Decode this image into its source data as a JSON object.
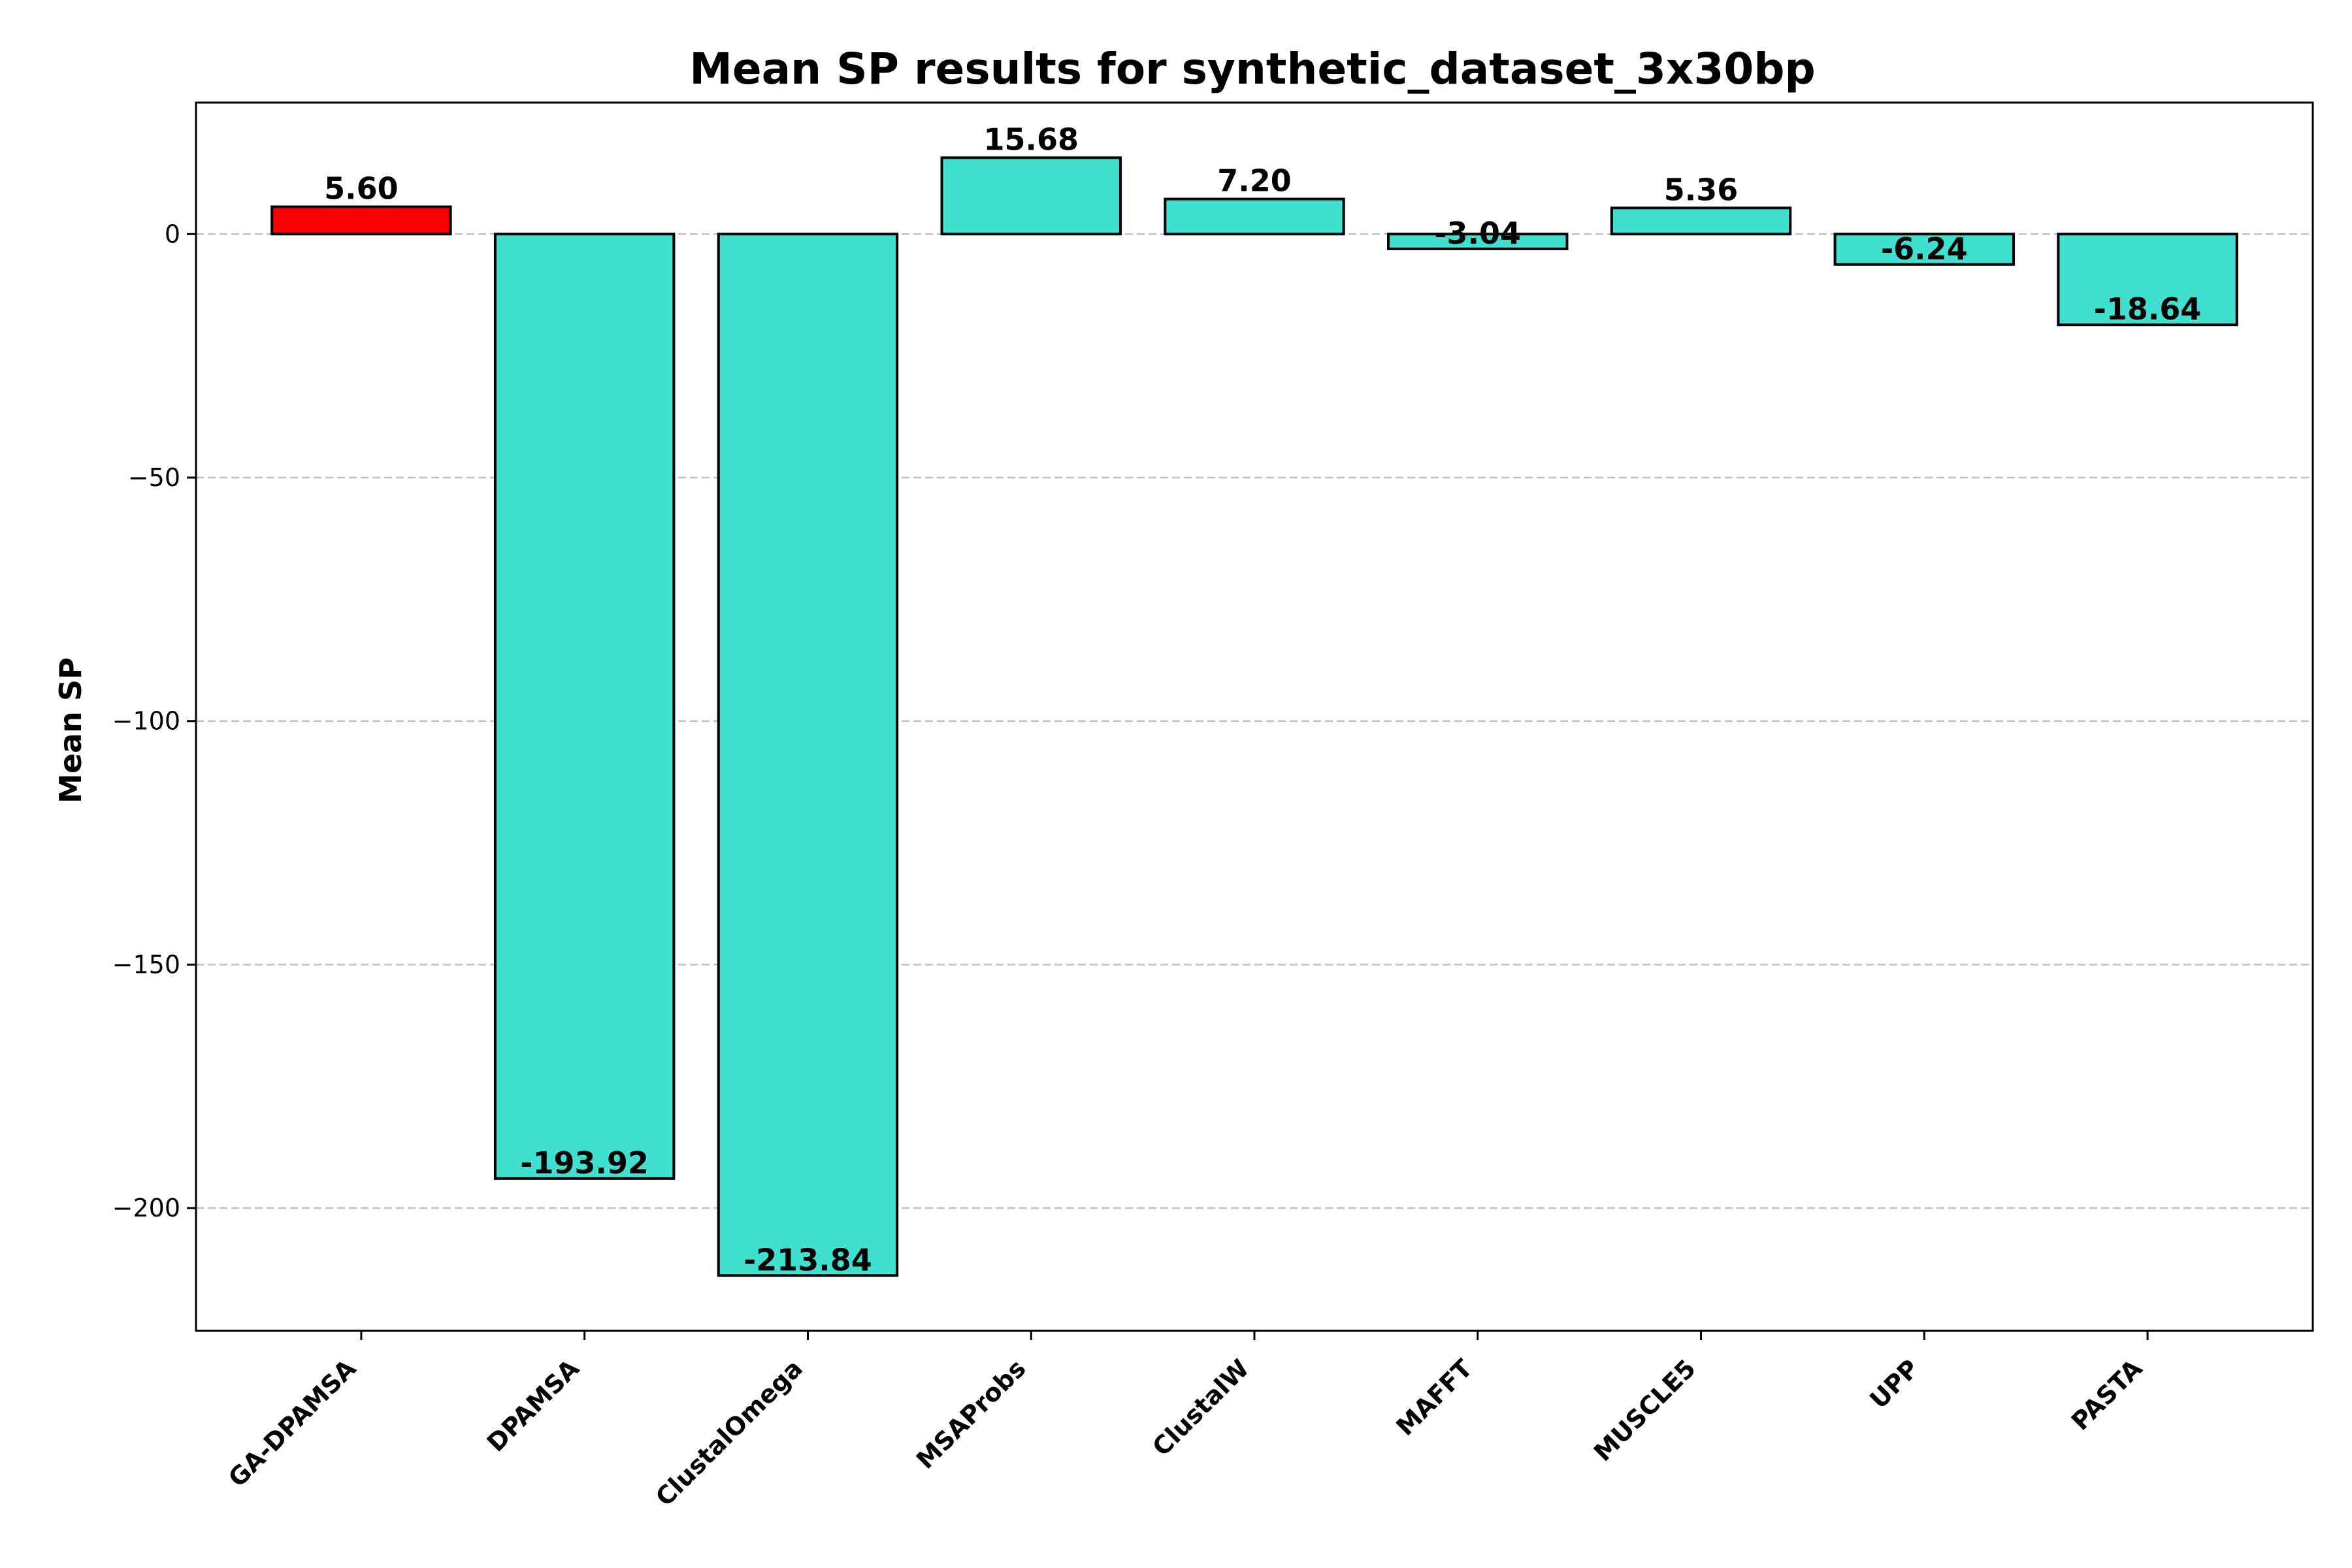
{
  "chart_data": {
    "type": "bar",
    "title": "Mean SP results for synthetic_dataset_3x30bp",
    "xlabel": "",
    "ylabel": "Mean SP",
    "categories": [
      "GA-DPAMSA",
      "DPAMSA",
      "ClustalOmega",
      "MSAProbs",
      "ClustalW",
      "MAFFT",
      "MUSCLE5",
      "UPP",
      "PASTA"
    ],
    "values": [
      5.6,
      -193.92,
      -213.84,
      15.68,
      7.2,
      -3.04,
      5.36,
      -6.24,
      -18.64
    ],
    "data_labels": [
      "5.60",
      "-193.92",
      "-213.84",
      "15.68",
      "7.20",
      "-3.04",
      "5.36",
      "-6.24",
      "-18.64"
    ],
    "bar_colors": [
      "#ff0000",
      "#40e0d0",
      "#40e0d0",
      "#40e0d0",
      "#40e0d0",
      "#40e0d0",
      "#40e0d0",
      "#40e0d0",
      "#40e0d0"
    ],
    "ylim": [
      -225.2,
      27.0
    ],
    "yticks": [
      0,
      -50,
      -100,
      -150,
      -200
    ],
    "ytick_labels": [
      "0",
      "−50",
      "−100",
      "−150",
      "−200"
    ],
    "grid": "y-dashed",
    "legend": "none"
  }
}
